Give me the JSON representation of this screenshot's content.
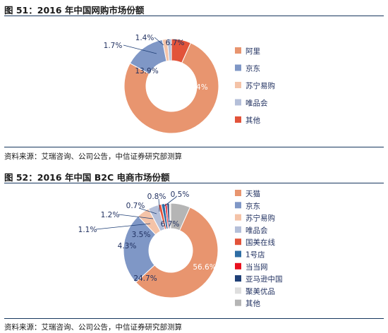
{
  "figures": [
    {
      "title": "图 51：2016 年中国网购市场份额",
      "source": "资料来源：艾瑞咨询、公司公告，中信证券研究部测算"
    },
    {
      "title": "图 52：2016 年中国 B2C 电商市场份额",
      "source": "资料来源：艾瑞咨询、公司公告，中信证券研究部测算"
    }
  ],
  "chart_data": [
    {
      "type": "pie",
      "style": "donut",
      "title": "2016 年中国网购市场份额",
      "legend_position": "right",
      "categories": [
        "阿里",
        "京东",
        "苏宁易购",
        "唯品会",
        "其他"
      ],
      "values": [
        76.4,
        13.9,
        1.7,
        1.4,
        6.7
      ],
      "labels": [
        "76.4%",
        "13.9%",
        "1.7%",
        "1.4%",
        "6.7%"
      ],
      "colors": [
        "#e8956f",
        "#7f97c6",
        "#f4c3a8",
        "#b4bfd9",
        "#e2533a"
      ]
    },
    {
      "type": "pie",
      "style": "donut",
      "title": "2016 年中国 B2C 电商市场份额",
      "legend_position": "right",
      "categories": [
        "天猫",
        "京东",
        "苏宁易购",
        "唯品会",
        "国美在线",
        "1号店",
        "当当网",
        "亚马逊中国",
        "聚美优品",
        "其他"
      ],
      "values": [
        56.6,
        24.7,
        4.3,
        3.5,
        1.1,
        1.2,
        0.7,
        0.8,
        0.5,
        6.7
      ],
      "labels": [
        "56.6%",
        "24.7%",
        "4.3%",
        "3.5%",
        "1.1%",
        "1.2%",
        "0.7%",
        "0.8%",
        "0.5%",
        "6.7%"
      ],
      "colors": [
        "#e8956f",
        "#7f97c6",
        "#f4c3a8",
        "#b4bfd9",
        "#e2533a",
        "#2e6da4",
        "#e8101e",
        "#1f3f76",
        "#dedede",
        "#b5b5b5"
      ]
    }
  ]
}
